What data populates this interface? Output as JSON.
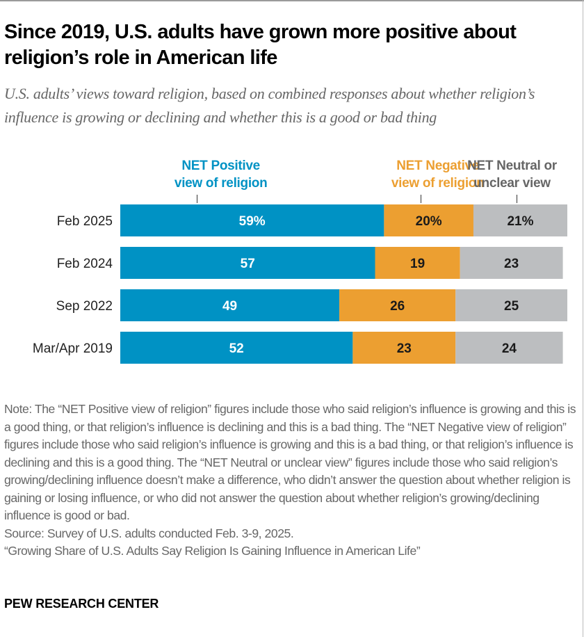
{
  "title": "Since 2019, U.S. adults have grown more positive about religion’s role in American life",
  "subtitle": "U.S. adults’ views toward religion, based on combined responses about whether religion’s influence is growing or declining and whether this is a good or bad thing",
  "chart_data": {
    "type": "bar",
    "orientation": "horizontal-stacked",
    "categories": [
      "Feb 2025",
      "Feb 2024",
      "Sep 2022",
      "Mar/Apr 2019"
    ],
    "series": [
      {
        "name": "NET Positive view of religion",
        "values": [
          59,
          57,
          49,
          52
        ],
        "labels": [
          "59%",
          "57",
          "49",
          "52"
        ],
        "color": "#0092c4"
      },
      {
        "name": "NET Negative view of religion",
        "values": [
          20,
          19,
          26,
          23
        ],
        "labels": [
          "20%",
          "19",
          "26",
          "23"
        ],
        "color": "#ec9f31"
      },
      {
        "name": "NET Neutral or unclear view",
        "values": [
          21,
          23,
          25,
          24
        ],
        "labels": [
          "21%",
          "23",
          "25",
          "24"
        ],
        "color": "#bcbec0"
      }
    ],
    "legend_lines": [
      [
        "NET Positive",
        "view of religion"
      ],
      [
        "NET Negative",
        "view of religion"
      ],
      [
        "NET Neutral or",
        "unclear view"
      ]
    ],
    "legend_text_colors": [
      "#0092c4",
      "#ec9f31",
      "#666666"
    ],
    "label_colors": [
      "#ffffff",
      "#1a1a1a",
      "#1a1a1a"
    ],
    "xlim": [
      0,
      100
    ],
    "legend_placement": "top",
    "grid": false
  },
  "note": [
    "Note: The “NET Positive view of religion” figures include those who said religion’s influence is growing and this is a good thing, or that religion’s influence is declining and this is a bad thing. The “NET Negative view of religion” figures include those who said religion’s influence is growing and this is a bad thing, or that religion’s influence is declining and this is a good thing. The “NET Neutral or unclear view” figures include those who said religion’s growing/declining influence doesn’t make a difference, who didn’t answer the question about whether religion is gaining or losing influence, or who did not answer the question about whether religion’s growing/declining influence is good or bad.",
    "Source: Survey of U.S. adults conducted Feb. 3-9, 2025.",
    "“Growing Share of U.S. Adults Say Religion Is Gaining Influence in American Life”"
  ],
  "logo": "PEW RESEARCH CENTER"
}
